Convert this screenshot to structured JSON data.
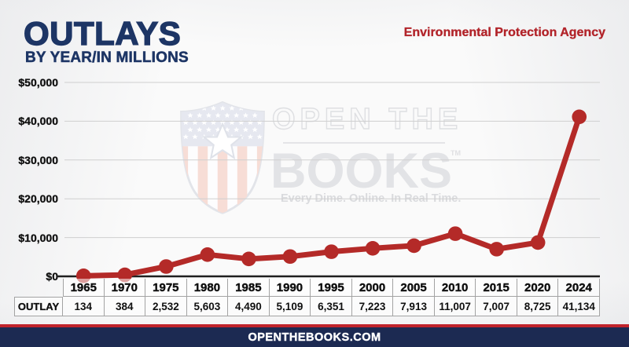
{
  "header": {
    "title": "OUTLAYS",
    "subtitle": "BY YEAR/IN MILLIONS",
    "agency": "Environmental Protection Agency"
  },
  "watermark": {
    "line1": "OPEN THE",
    "line2": "BOOKS",
    "tm": "TM",
    "tagline": "Every Dime. Online. In Real Time.",
    "shield_icon": "open-the-books-shield"
  },
  "chart_data": {
    "type": "line",
    "title": "OUTLAYS",
    "subtitle": "BY YEAR/IN MILLIONS",
    "series_label": "OUTLAY",
    "categories": [
      "1965",
      "1970",
      "1975",
      "1980",
      "1985",
      "1990",
      "1995",
      "2000",
      "2005",
      "2010",
      "2015",
      "2020",
      "2024"
    ],
    "values": [
      134,
      384,
      2532,
      5603,
      4490,
      5109,
      6351,
      7223,
      7913,
      11007,
      7007,
      8725,
      41134
    ],
    "xlabel": "",
    "ylabel": "",
    "ylim": [
      0,
      50000
    ],
    "grid": "horizontal",
    "legend": "none",
    "line_color": "#b42a28",
    "marker": "circle",
    "y_ticks": [
      {
        "label": "$50,000",
        "value": 50000
      },
      {
        "label": "$40,000",
        "value": 40000
      },
      {
        "label": "$30,000",
        "value": 30000
      },
      {
        "label": "$20,000",
        "value": 20000
      },
      {
        "label": "$10,000",
        "value": 10000
      },
      {
        "label": "$0",
        "value": 0
      }
    ]
  },
  "table": {
    "row_label": "OUTLAY",
    "years": [
      "1965",
      "1970",
      "1975",
      "1980",
      "1985",
      "1990",
      "1995",
      "2000",
      "2005",
      "2010",
      "2015",
      "2020",
      "2024"
    ],
    "values_display": [
      "134",
      "384",
      "2,532",
      "5,603",
      "4,490",
      "5,109",
      "6,351",
      "7,223",
      "7,913",
      "11,007",
      "7,007",
      "8,725",
      "41,134"
    ]
  },
  "footer": {
    "url": "OPENTHEBOOKS.COM"
  },
  "colors": {
    "navy_title": "#1d3565",
    "accent_red": "#b42a28",
    "agency_red": "#b2242a",
    "footer_navy": "#1c2a52",
    "footer_stripe_red": "#c0232b",
    "grid": "#cfcfcf",
    "axis": "#1f1f1f"
  }
}
